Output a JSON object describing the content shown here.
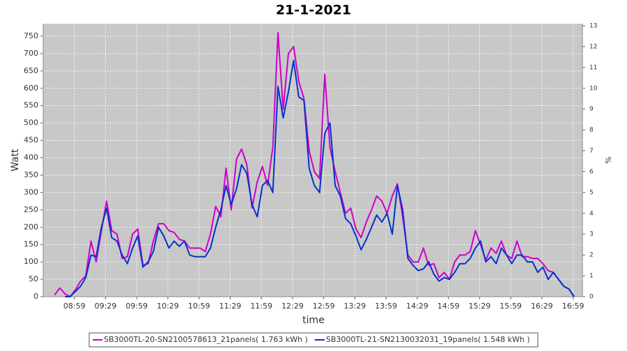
{
  "chart_data": {
    "type": "line",
    "title": "21-1-2021",
    "x_label": "time",
    "y_label": "Watt",
    "y2_label": "%",
    "x": [
      "08:40",
      "08:45",
      "08:50",
      "08:55",
      "09:00",
      "09:05",
      "09:10",
      "09:15",
      "09:20",
      "09:25",
      "09:30",
      "09:35",
      "09:40",
      "09:45",
      "09:50",
      "09:55",
      "10:00",
      "10:05",
      "10:10",
      "10:15",
      "10:20",
      "10:25",
      "10:30",
      "10:35",
      "10:40",
      "10:45",
      "10:50",
      "10:55",
      "11:00",
      "11:05",
      "11:10",
      "11:15",
      "11:20",
      "11:25",
      "11:30",
      "11:35",
      "11:40",
      "11:45",
      "11:50",
      "11:55",
      "12:00",
      "12:05",
      "12:10",
      "12:15",
      "12:20",
      "12:25",
      "12:30",
      "12:35",
      "12:40",
      "12:45",
      "12:50",
      "12:55",
      "13:00",
      "13:05",
      "13:10",
      "13:15",
      "13:20",
      "13:25",
      "13:30",
      "13:35",
      "13:40",
      "13:45",
      "13:50",
      "13:55",
      "14:00",
      "14:05",
      "14:10",
      "14:15",
      "14:20",
      "14:25",
      "14:30",
      "14:35",
      "14:40",
      "14:45",
      "14:50",
      "14:55",
      "15:00",
      "15:05",
      "15:10",
      "15:15",
      "15:20",
      "15:25",
      "15:30",
      "15:35",
      "15:40",
      "15:45",
      "15:50",
      "15:55",
      "16:00",
      "16:05",
      "16:10",
      "16:15",
      "16:20",
      "16:25",
      "16:30",
      "16:35",
      "16:40",
      "16:45",
      "16:50",
      "16:55",
      "17:00"
    ],
    "series": [
      {
        "name": "SB3000TL-20-SN2100578613_21panels( 1.763 kWh )",
        "color": "#cc00cc",
        "values": [
          5,
          25,
          8,
          0,
          20,
          45,
          60,
          160,
          100,
          190,
          275,
          190,
          180,
          110,
          115,
          180,
          195,
          90,
          95,
          160,
          210,
          210,
          190,
          185,
          165,
          160,
          140,
          140,
          140,
          130,
          180,
          260,
          230,
          370,
          250,
          395,
          425,
          380,
          255,
          330,
          375,
          320,
          430,
          760,
          540,
          700,
          720,
          620,
          570,
          420,
          360,
          340,
          640,
          430,
          360,
          300,
          240,
          255,
          195,
          170,
          215,
          250,
          290,
          275,
          240,
          290,
          325,
          230,
          120,
          100,
          100,
          140,
          90,
          95,
          55,
          70,
          50,
          100,
          120,
          120,
          130,
          190,
          150,
          105,
          140,
          125,
          160,
          120,
          110,
          160,
          115,
          115,
          110,
          110,
          95,
          75,
          70,
          50,
          30,
          22,
          0
        ]
      },
      {
        "name": "SB3000TL-21-SN2130032031_19panels( 1.548 kWh )",
        "color": "#0033cc",
        "values": [
          null,
          null,
          0,
          0,
          15,
          30,
          55,
          120,
          115,
          200,
          255,
          170,
          160,
          120,
          95,
          140,
          175,
          85,
          100,
          130,
          200,
          175,
          140,
          160,
          145,
          160,
          120,
          115,
          115,
          115,
          140,
          200,
          250,
          320,
          265,
          310,
          380,
          355,
          265,
          230,
          320,
          335,
          300,
          605,
          515,
          590,
          680,
          575,
          565,
          370,
          320,
          300,
          470,
          500,
          320,
          290,
          225,
          210,
          175,
          135,
          165,
          200,
          235,
          215,
          240,
          180,
          320,
          250,
          110,
          90,
          75,
          80,
          100,
          65,
          45,
          55,
          50,
          70,
          95,
          95,
          110,
          140,
          160,
          100,
          115,
          95,
          140,
          120,
          95,
          120,
          120,
          100,
          100,
          70,
          85,
          50,
          70,
          50,
          30,
          22,
          0
        ]
      }
    ],
    "xlim": [
      "08:29",
      "17:08"
    ],
    "xticks": [
      "08:59",
      "09:29",
      "09:59",
      "10:29",
      "10:59",
      "11:29",
      "11:59",
      "12:29",
      "12:59",
      "13:29",
      "13:59",
      "14:29",
      "14:59",
      "15:29",
      "15:59",
      "16:29",
      "16:59"
    ],
    "ylim": [
      0,
      786
    ],
    "yticks": [
      0,
      50,
      100,
      150,
      200,
      250,
      300,
      350,
      400,
      450,
      500,
      550,
      600,
      650,
      700,
      750
    ],
    "y2lim": [
      0,
      13.1
    ],
    "y2ticks": [
      0,
      1,
      2,
      3,
      4,
      5,
      6,
      7,
      8,
      9,
      10,
      11,
      12,
      13
    ],
    "grid": true,
    "legend": "bottom"
  }
}
